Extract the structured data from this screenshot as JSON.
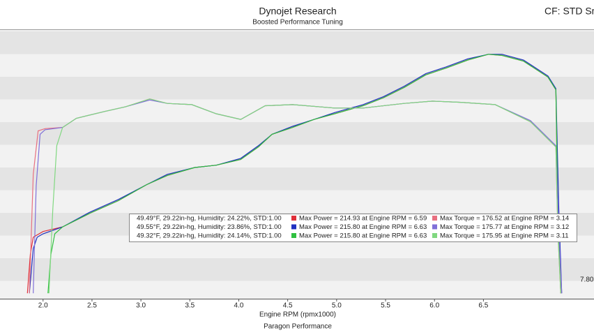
{
  "chart_data": {
    "type": "line",
    "title": "Dynojet Research",
    "subtitle": "Boosted Performance Tuning",
    "corner_label": "CF: STD Sm",
    "x_label": "Engine RPM (rpmx1000)",
    "footer": "Paragon Performance",
    "annotation": "7.80",
    "xlim": [
      1.56,
      7.63
    ],
    "ylim": [
      0,
      235
    ],
    "xticks": [
      {
        "value": 2,
        "label": "2.0"
      },
      2.5,
      {
        "value": 3,
        "label": "3.0"
      },
      3.5,
      {
        "value": 4,
        "label": "4.0"
      },
      4.5,
      {
        "value": 5,
        "label": "5.0"
      },
      5.5,
      {
        "value": 6,
        "label": "6.0"
      },
      6.5
    ],
    "series": [
      {
        "color": "#e0303a",
        "x": [
          1.84,
          1.87,
          1.9,
          2.0,
          2.2,
          2.48,
          2.77,
          3.06,
          3.27,
          3.55,
          3.77,
          4.02,
          4.2,
          4.34,
          4.55,
          4.77,
          4.98,
          5.27,
          5.48,
          5.69,
          5.91,
          6.12,
          6.34,
          6.55,
          6.69,
          6.91,
          7.16,
          7.24,
          7.26,
          7.29
        ],
        "values": [
          6,
          40,
          55,
          60,
          64,
          76,
          87,
          101,
          109,
          116,
          118,
          123,
          134,
          145,
          151,
          158,
          163,
          170,
          177,
          186,
          197,
          203,
          210,
          215,
          214,
          209,
          195,
          184,
          79,
          6
        ]
      },
      {
        "color": "#2030c0",
        "x": [
          1.86,
          1.9,
          1.94,
          2.0,
          2.2,
          2.48,
          2.77,
          3.06,
          3.27,
          3.55,
          3.77,
          4.02,
          4.2,
          4.34,
          4.55,
          4.77,
          4.98,
          5.27,
          5.48,
          5.69,
          5.91,
          6.12,
          6.34,
          6.55,
          6.69,
          6.91,
          7.16,
          7.24,
          7.27,
          7.3
        ],
        "values": [
          6,
          45,
          55,
          58,
          64,
          77,
          88,
          101,
          110,
          116,
          118,
          124,
          135,
          145,
          152,
          158,
          164,
          171,
          178,
          187,
          198,
          204,
          211,
          215,
          215,
          210,
          196,
          185,
          80,
          6
        ]
      },
      {
        "color": "#30c040",
        "x": [
          2.05,
          2.08,
          2.12,
          2.2,
          2.48,
          2.77,
          3.06,
          3.27,
          3.55,
          3.77,
          4.02,
          4.2,
          4.34,
          4.55,
          4.77,
          4.98,
          5.27,
          5.48,
          5.69,
          5.91,
          6.12,
          6.34,
          6.55,
          6.69,
          6.91,
          7.16,
          7.24,
          7.26,
          7.29
        ],
        "values": [
          6,
          40,
          58,
          64,
          76,
          87,
          101,
          109,
          116,
          118,
          123,
          134,
          145,
          151,
          158,
          163,
          170,
          177,
          186,
          197,
          203,
          210,
          215,
          214,
          209,
          195,
          184,
          79,
          6
        ]
      },
      {
        "color": "#e87080",
        "x": [
          1.86,
          1.9,
          1.95,
          2.02,
          2.2,
          2.34,
          2.63,
          2.84,
          3.09,
          3.27,
          3.52,
          3.77,
          4.02,
          4.27,
          4.55,
          4.98,
          5.27,
          5.69,
          5.98,
          6.27,
          6.62,
          6.98,
          7.24,
          7.26,
          7.29
        ],
        "values": [
          6,
          110,
          148,
          150,
          151,
          159,
          165,
          169,
          176,
          172,
          171,
          163,
          158,
          170,
          171,
          168,
          168,
          172,
          174,
          173,
          171,
          156,
          134,
          61,
          6
        ]
      },
      {
        "color": "#8070d8",
        "x": [
          1.9,
          1.93,
          1.97,
          2.02,
          2.2,
          2.34,
          2.63,
          2.84,
          3.09,
          3.27,
          3.52,
          3.77,
          4.02,
          4.27,
          4.55,
          4.98,
          5.27,
          5.69,
          5.98,
          6.27,
          6.62,
          6.98,
          7.24,
          7.27,
          7.3
        ],
        "values": [
          6,
          100,
          145,
          149,
          151,
          159,
          165,
          169,
          175,
          172,
          171,
          163,
          158,
          170,
          171,
          168,
          168,
          172,
          174,
          173,
          171,
          157,
          135,
          62,
          6
        ]
      },
      {
        "color": "#80d880",
        "x": [
          2.06,
          2.1,
          2.14,
          2.2,
          2.34,
          2.63,
          2.84,
          3.09,
          3.27,
          3.52,
          3.77,
          4.02,
          4.27,
          4.55,
          4.98,
          5.27,
          5.69,
          5.98,
          6.27,
          6.62,
          6.98,
          7.24,
          7.26,
          7.29
        ],
        "values": [
          6,
          80,
          135,
          151,
          159,
          165,
          169,
          176,
          172,
          171,
          163,
          158,
          170,
          171,
          168,
          168,
          172,
          174,
          173,
          171,
          156,
          134,
          61,
          6
        ]
      }
    ],
    "legend_rows": [
      {
        "conditions": "49.49°F, 29.22in-hg, Humidity: 24.22%, STD:1.00",
        "power": "Max Power = 214.93 at Engine RPM = 6.59",
        "torque": "Max Torque = 176.52 at Engine RPM = 3.14"
      },
      {
        "conditions": "49.55°F, 29.22in-hg, Humidity: 23.86%, STD:1.00",
        "power": "Max Power = 215.80 at Engine RPM = 6.63",
        "torque": "Max Torque = 175.77 at Engine RPM = 3.12"
      },
      {
        "conditions": "49.32°F, 29.22in-hg, Humidity: 24.14%, STD:1.00",
        "power": "Max Power = 215.80 at Engine RPM = 6.63",
        "torque": "Max Torque = 175.95 at Engine RPM = 3.11"
      }
    ]
  }
}
